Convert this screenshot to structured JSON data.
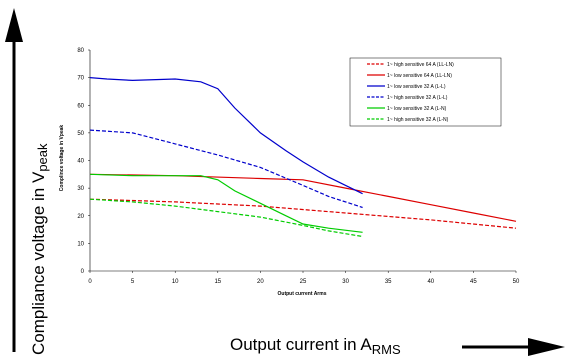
{
  "chart_data": {
    "type": "line",
    "title": "",
    "xlabel": "Output current Arms",
    "ylabel": "Complince voltage in Vpeak",
    "xlim": [
      0,
      50
    ],
    "ylim": [
      0,
      80
    ],
    "x_ticks": [
      0,
      5,
      10,
      15,
      20,
      25,
      30,
      35,
      40,
      45,
      50
    ],
    "y_ticks": [
      0,
      10,
      20,
      30,
      40,
      50,
      60,
      70,
      80
    ],
    "grid": false,
    "legend_position": "top-right",
    "series": [
      {
        "name": "1~ high sensitive 64 A (LL-LN)",
        "color": "#dd0000",
        "dash": "dashed",
        "points": [
          [
            0,
            26
          ],
          [
            10,
            25
          ],
          [
            20,
            23.5
          ],
          [
            30,
            21
          ],
          [
            40,
            18.5
          ],
          [
            50,
            15.5
          ]
        ]
      },
      {
        "name": "1~ low sensitive 64 A (LL-LN)",
        "color": "#dd0000",
        "dash": "solid",
        "points": [
          [
            0,
            35
          ],
          [
            10,
            34.5
          ],
          [
            20,
            33.5
          ],
          [
            25,
            33
          ],
          [
            30,
            30
          ],
          [
            35,
            27
          ],
          [
            40,
            24
          ],
          [
            45,
            21
          ],
          [
            50,
            18
          ]
        ]
      },
      {
        "name": "1~ low sensitive 32 A (L-L)",
        "color": "#0000cc",
        "dash": "solid",
        "points": [
          [
            0,
            70
          ],
          [
            2,
            69.5
          ],
          [
            5,
            69
          ],
          [
            10,
            69.5
          ],
          [
            13,
            68.5
          ],
          [
            15,
            66
          ],
          [
            17,
            59
          ],
          [
            20,
            50
          ],
          [
            23,
            43.5
          ],
          [
            25,
            39.5
          ],
          [
            28,
            34
          ],
          [
            30,
            31
          ],
          [
            32,
            28
          ]
        ]
      },
      {
        "name": "1~ high sensitive 32 A (L-L)",
        "color": "#0000cc",
        "dash": "dashed",
        "points": [
          [
            0,
            51
          ],
          [
            5,
            50
          ],
          [
            10,
            46
          ],
          [
            15,
            42
          ],
          [
            20,
            37.5
          ],
          [
            25,
            31
          ],
          [
            28,
            27
          ],
          [
            32,
            23
          ]
        ]
      },
      {
        "name": "1~ low sensitive 32 A (L-N)",
        "color": "#00cc00",
        "dash": "solid",
        "points": [
          [
            0,
            35
          ],
          [
            5,
            34.5
          ],
          [
            10,
            34.5
          ],
          [
            13,
            34.5
          ],
          [
            15,
            33
          ],
          [
            17,
            29
          ],
          [
            20,
            24.5
          ],
          [
            23,
            20
          ],
          [
            25,
            17
          ],
          [
            28,
            15.5
          ],
          [
            32,
            14
          ]
        ]
      },
      {
        "name": "1~ high sensitive 32 A (L-N)",
        "color": "#00cc00",
        "dash": "dashed",
        "points": [
          [
            0,
            26
          ],
          [
            5,
            25
          ],
          [
            10,
            23.5
          ],
          [
            15,
            21.5
          ],
          [
            20,
            19.5
          ],
          [
            25,
            16.5
          ],
          [
            28,
            14.5
          ],
          [
            32,
            12.5
          ]
        ]
      }
    ]
  },
  "outer_labels": {
    "y_text": "Compliance voltage in V",
    "y_sub": "peak",
    "x_text": "Output current in A",
    "x_sub": "RMS"
  }
}
